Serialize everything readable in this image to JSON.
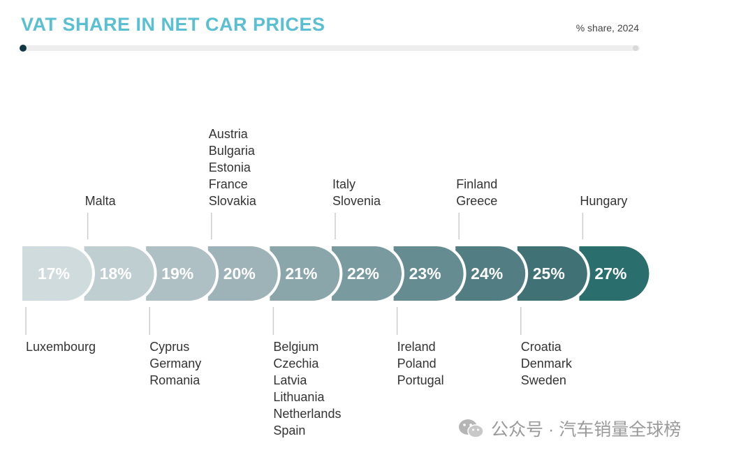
{
  "header": {
    "title": "VAT SHARE IN NET CAR PRICES",
    "subtitle": "% share, 2024"
  },
  "watermark": {
    "text": "公众号 · 汽车销量全球榜",
    "icon": "wechat-icon"
  },
  "colors": {
    "title": "#5bbfd2",
    "scale": [
      "#d0dbdd",
      "#bfced1",
      "#aec0c4",
      "#9db3b8",
      "#8ba6ab",
      "#799a9f",
      "#658c91",
      "#527e83",
      "#407175",
      "#2b6e6e"
    ]
  },
  "chart_data": {
    "type": "bar",
    "title": "VAT SHARE IN NET CAR PRICES",
    "subtitle": "% share, 2024",
    "categories": [
      "17%",
      "18%",
      "19%",
      "20%",
      "21%",
      "22%",
      "23%",
      "24%",
      "25%",
      "27%"
    ],
    "values": [
      17,
      18,
      19,
      20,
      21,
      22,
      23,
      24,
      25,
      27
    ],
    "unit": "%",
    "groups": [
      {
        "value": "17%",
        "position": "below",
        "countries": [
          "Luxembourg"
        ]
      },
      {
        "value": "18%",
        "position": "above",
        "countries": [
          "Malta"
        ]
      },
      {
        "value": "19%",
        "position": "below",
        "countries": [
          "Cyprus",
          "Germany",
          "Romania"
        ]
      },
      {
        "value": "20%",
        "position": "above",
        "countries": [
          "Austria",
          "Bulgaria",
          "Estonia",
          "France",
          "Slovakia"
        ]
      },
      {
        "value": "21%",
        "position": "below",
        "countries": [
          "Belgium",
          "Czechia",
          "Latvia",
          "Lithuania",
          "Netherlands",
          "Spain"
        ]
      },
      {
        "value": "22%",
        "position": "above",
        "countries": [
          "Italy",
          "Slovenia"
        ]
      },
      {
        "value": "23%",
        "position": "below",
        "countries": [
          "Ireland",
          "Poland",
          "Portugal"
        ]
      },
      {
        "value": "24%",
        "position": "above",
        "countries": [
          "Finland",
          "Greece"
        ]
      },
      {
        "value": "25%",
        "position": "below",
        "countries": [
          "Croatia",
          "Denmark",
          "Sweden"
        ]
      },
      {
        "value": "27%",
        "position": "above",
        "countries": [
          "Hungary"
        ]
      }
    ]
  }
}
